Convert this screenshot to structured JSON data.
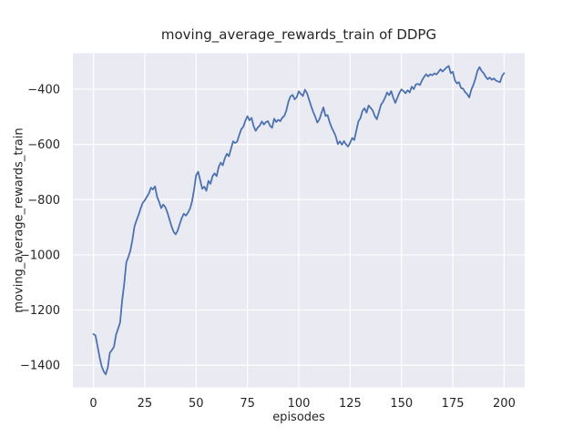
{
  "chart_data": {
    "type": "line",
    "title": "moving_average_rewards_train of DDPG",
    "xlabel": "episodes",
    "ylabel": "moving_average_rewards_train",
    "style": "seaborn-darkgrid",
    "grid": true,
    "legend": "none",
    "xlim": [
      -10,
      210
    ],
    "ylim": [
      -1480,
      -270
    ],
    "xticks": [
      0,
      25,
      50,
      75,
      100,
      125,
      150,
      175,
      200
    ],
    "xtick_labels": [
      "0",
      "25",
      "50",
      "75",
      "100",
      "125",
      "150",
      "175",
      "200"
    ],
    "yticks": [
      -400,
      -600,
      -800,
      -1000,
      -1200,
      -1400
    ],
    "ytick_labels": [
      "−400",
      "−600",
      "−800",
      "−1000",
      "−1200",
      "−1400"
    ],
    "colors": {
      "line": "#4c72b0",
      "axes_background": "#eaeaf2",
      "grid": "#ffffff",
      "text": "#262626",
      "figure_background": "#ffffff"
    },
    "series": [
      {
        "name": "moving_average_rewards_train",
        "x_start": 0,
        "x_step": 1,
        "values": [
          -1287,
          -1292,
          -1330,
          -1370,
          -1403,
          -1422,
          -1433,
          -1408,
          -1355,
          -1345,
          -1333,
          -1290,
          -1268,
          -1245,
          -1165,
          -1105,
          -1028,
          -1008,
          -985,
          -945,
          -897,
          -875,
          -855,
          -832,
          -812,
          -803,
          -790,
          -778,
          -757,
          -763,
          -752,
          -790,
          -808,
          -831,
          -818,
          -827,
          -846,
          -871,
          -896,
          -916,
          -926,
          -913,
          -889,
          -867,
          -851,
          -858,
          -848,
          -833,
          -808,
          -765,
          -712,
          -699,
          -730,
          -761,
          -753,
          -768,
          -732,
          -743,
          -715,
          -705,
          -715,
          -682,
          -666,
          -676,
          -650,
          -634,
          -643,
          -616,
          -589,
          -595,
          -590,
          -566,
          -545,
          -536,
          -514,
          -498,
          -513,
          -504,
          -534,
          -551,
          -539,
          -532,
          -517,
          -528,
          -519,
          -516,
          -533,
          -540,
          -507,
          -519,
          -511,
          -516,
          -503,
          -496,
          -476,
          -444,
          -426,
          -421,
          -437,
          -429,
          -408,
          -417,
          -425,
          -402,
          -414,
          -438,
          -461,
          -482,
          -500,
          -521,
          -510,
          -487,
          -466,
          -497,
          -494,
          -519,
          -539,
          -554,
          -571,
          -599,
          -589,
          -601,
          -588,
          -600,
          -608,
          -594,
          -577,
          -584,
          -551,
          -517,
          -505,
          -479,
          -469,
          -485,
          -459,
          -468,
          -477,
          -497,
          -509,
          -484,
          -457,
          -446,
          -431,
          -412,
          -422,
          -407,
          -431,
          -450,
          -431,
          -413,
          -401,
          -407,
          -415,
          -404,
          -412,
          -391,
          -400,
          -383,
          -381,
          -385,
          -368,
          -356,
          -346,
          -354,
          -346,
          -350,
          -343,
          -347,
          -338,
          -328,
          -336,
          -329,
          -321,
          -316,
          -342,
          -337,
          -368,
          -379,
          -375,
          -396,
          -398,
          -411,
          -418,
          -430,
          -402,
          -385,
          -362,
          -334,
          -320,
          -334,
          -342,
          -355,
          -364,
          -358,
          -366,
          -361,
          -369,
          -372,
          -375,
          -352,
          -342
        ]
      }
    ]
  }
}
